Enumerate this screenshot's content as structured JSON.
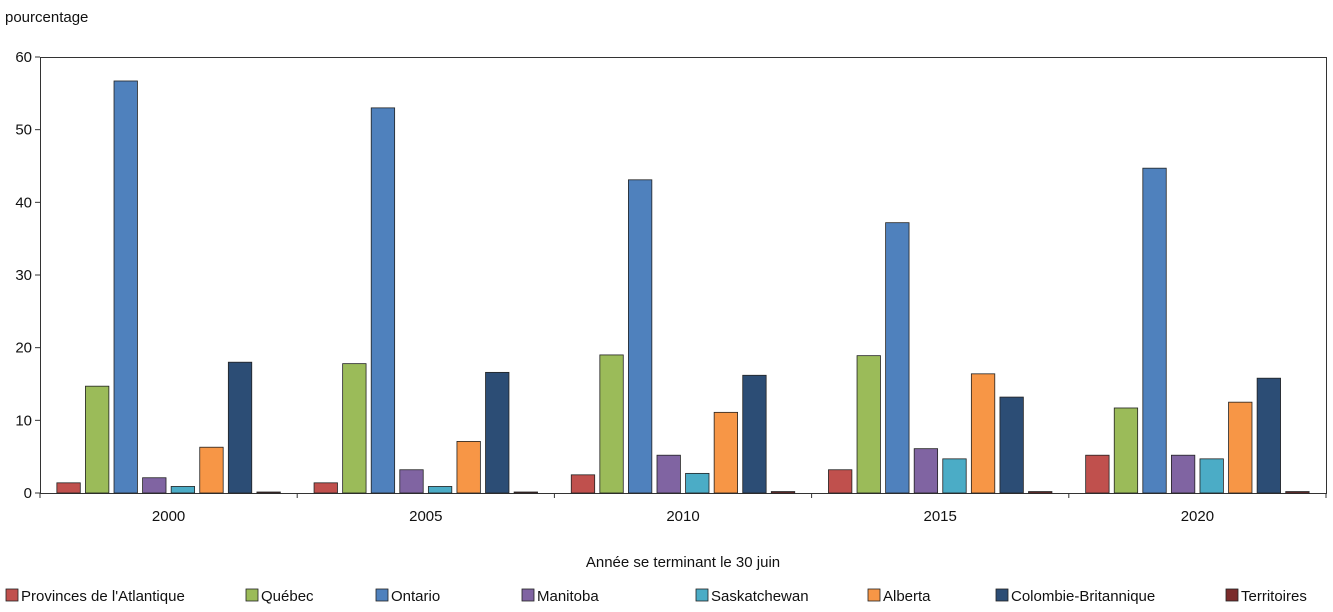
{
  "chart_data": {
    "type": "bar",
    "title": "",
    "ylabel": "pourcentage",
    "xlabel": "Année se terminant le 30 juin",
    "ylim": [
      0,
      60
    ],
    "yticks": [
      0,
      10,
      20,
      30,
      40,
      50,
      60
    ],
    "grid": false,
    "legend_position": "bottom",
    "categories": [
      "2000",
      "2005",
      "2010",
      "2015",
      "2020"
    ],
    "series": [
      {
        "name": "Provinces de l'Atlantique",
        "color": "#c0504d",
        "values": [
          1.4,
          1.4,
          2.5,
          3.2,
          5.2
        ]
      },
      {
        "name": "Québec",
        "color": "#9bbb59",
        "values": [
          14.7,
          17.8,
          19.0,
          18.9,
          11.7
        ]
      },
      {
        "name": "Ontario",
        "color": "#4f81bd",
        "values": [
          56.7,
          53.0,
          43.1,
          37.2,
          44.7
        ]
      },
      {
        "name": "Manitoba",
        "color": "#8064a2",
        "values": [
          2.1,
          3.2,
          5.2,
          6.1,
          5.2
        ]
      },
      {
        "name": "Saskatchewan",
        "color": "#4bacc6",
        "values": [
          0.9,
          0.9,
          2.7,
          4.7,
          4.7
        ]
      },
      {
        "name": "Alberta",
        "color": "#f79646",
        "values": [
          6.3,
          7.1,
          11.1,
          16.4,
          12.5
        ]
      },
      {
        "name": "Colombie-Britannique",
        "color": "#2c4d75",
        "values": [
          18.0,
          16.6,
          16.2,
          13.2,
          15.8
        ]
      },
      {
        "name": "Territoires",
        "color": "#7b2c2c",
        "values": [
          0.1,
          0.1,
          0.2,
          0.2,
          0.2
        ]
      }
    ]
  }
}
